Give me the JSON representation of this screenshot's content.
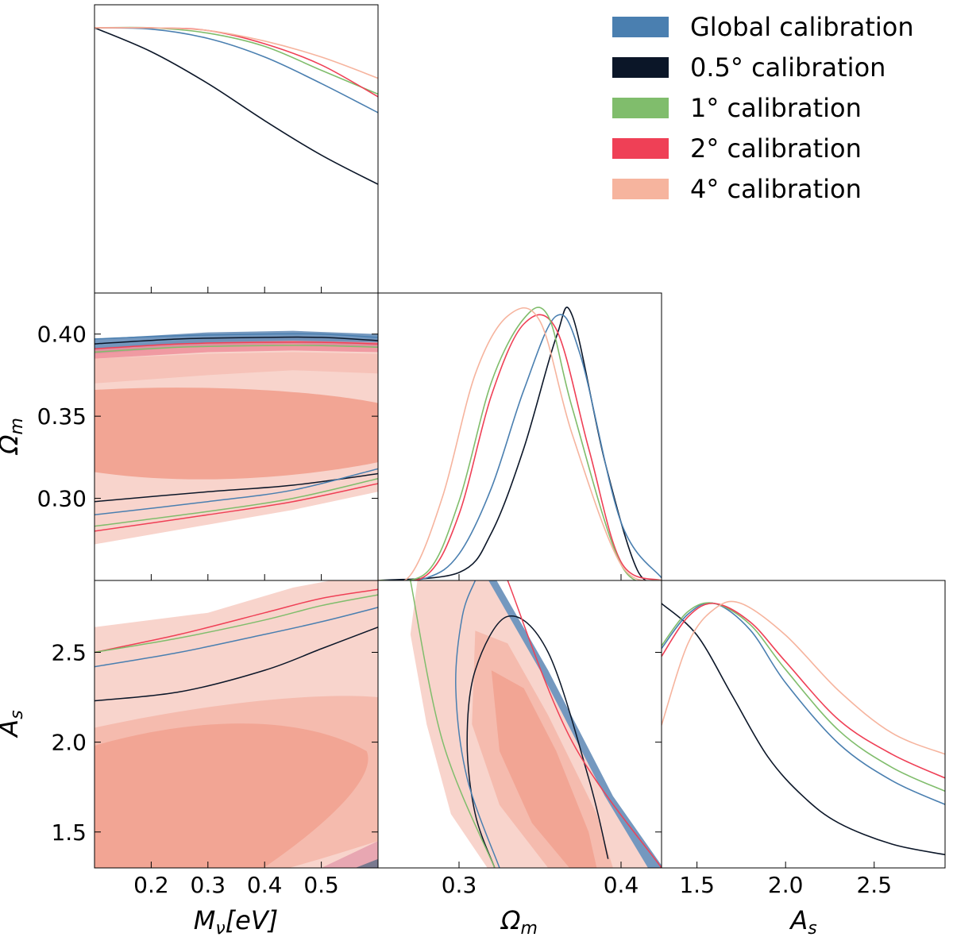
{
  "chart_data": {
    "type": "corner",
    "parameters": [
      {
        "id": "mnu",
        "label": "Mν[eV]",
        "display_label": [
          "M",
          "ν",
          "[eV]"
        ],
        "range": [
          0.1,
          0.6
        ]
      },
      {
        "id": "om",
        "label": "Ωm",
        "display_label": [
          "Ω",
          "m"
        ],
        "range": [
          0.25,
          0.425
        ]
      },
      {
        "id": "as",
        "label": "As",
        "display_label": [
          "A",
          "s"
        ],
        "range": [
          1.3,
          2.9
        ]
      }
    ],
    "ticks": {
      "mnu": [
        "0.2",
        "0.3",
        "0.4",
        "0.5"
      ],
      "om_y": [
        "0.30",
        "0.35",
        "0.40"
      ],
      "om_x": [
        "0.3",
        "0.4"
      ],
      "as_y": [
        "1.5",
        "2.0",
        "2.5"
      ],
      "as_x": [
        "1.5",
        "2.0",
        "2.5"
      ]
    },
    "legend": [
      {
        "name": "Global calibration",
        "color": "#4a7fb0"
      },
      {
        "name": "0.5° calibration",
        "color": "#0b1628"
      },
      {
        "name": "1° calibration",
        "color": "#80bd6c"
      },
      {
        "name": "2° calibration",
        "color": "#ef4056"
      },
      {
        "name": "4° calibration",
        "color": "#f6b49e"
      }
    ],
    "fill_colors": {
      "inner": "#f2a594",
      "outer": "#f8d4cc"
    },
    "series_1d": {
      "mnu": [
        {
          "color": "#0b1628",
          "x": [
            0.1,
            0.2,
            0.3,
            0.4,
            0.5,
            0.6
          ],
          "y": [
            1.0,
            0.91,
            0.79,
            0.65,
            0.52,
            0.41
          ]
        },
        {
          "color": "#4a7fb0",
          "x": [
            0.1,
            0.2,
            0.3,
            0.4,
            0.5,
            0.6
          ],
          "y": [
            1.0,
            0.995,
            0.96,
            0.89,
            0.79,
            0.68
          ]
        },
        {
          "color": "#80bd6c",
          "x": [
            0.1,
            0.2,
            0.3,
            0.4,
            0.5,
            0.6
          ],
          "y": [
            1.0,
            1.0,
            0.98,
            0.93,
            0.84,
            0.75
          ]
        },
        {
          "color": "#ef4056",
          "x": [
            0.1,
            0.2,
            0.3,
            0.4,
            0.5,
            0.6
          ],
          "y": [
            1.0,
            1.0,
            0.99,
            0.94,
            0.86,
            0.74
          ]
        },
        {
          "color": "#f6b49e",
          "x": [
            0.1,
            0.2,
            0.3,
            0.4,
            0.5,
            0.6
          ],
          "y": [
            1.0,
            1.0,
            0.99,
            0.95,
            0.89,
            0.81
          ]
        }
      ],
      "om": [
        {
          "color": "#0b1628",
          "x": [
            0.25,
            0.3,
            0.32,
            0.34,
            0.36,
            0.37,
            0.39,
            0.41,
            0.425
          ],
          "y": [
            0.0,
            0.03,
            0.18,
            0.5,
            0.92,
            1.0,
            0.45,
            0.04,
            0.0
          ]
        },
        {
          "color": "#4a7fb0",
          "x": [
            0.25,
            0.28,
            0.3,
            0.32,
            0.34,
            0.36,
            0.375,
            0.4,
            0.425
          ],
          "y": [
            0.0,
            0.01,
            0.1,
            0.35,
            0.72,
            1.0,
            0.85,
            0.22,
            0.01
          ]
        },
        {
          "color": "#ef4056",
          "x": [
            0.25,
            0.28,
            0.3,
            0.32,
            0.34,
            0.36,
            0.38,
            0.4,
            0.425
          ],
          "y": [
            0.0,
            0.02,
            0.25,
            0.7,
            0.97,
            0.95,
            0.5,
            0.07,
            0.0
          ]
        },
        {
          "color": "#80bd6c",
          "x": [
            0.25,
            0.28,
            0.3,
            0.32,
            0.34,
            0.355,
            0.37,
            0.4,
            0.425
          ],
          "y": [
            0.0,
            0.03,
            0.3,
            0.75,
            0.99,
            1.0,
            0.65,
            0.06,
            0.0
          ]
        },
        {
          "color": "#f6b49e",
          "x": [
            0.25,
            0.27,
            0.29,
            0.31,
            0.33,
            0.35,
            0.37,
            0.4,
            0.425
          ],
          "y": [
            0.0,
            0.02,
            0.32,
            0.78,
            1.0,
            0.98,
            0.55,
            0.06,
            0.0
          ]
        }
      ],
      "as": [
        {
          "color": "#0b1628",
          "x": [
            1.3,
            1.5,
            1.7,
            1.9,
            2.1,
            2.3,
            2.6,
            2.9
          ],
          "y": [
            1.0,
            0.88,
            0.65,
            0.42,
            0.27,
            0.17,
            0.09,
            0.05
          ]
        },
        {
          "color": "#4a7fb0",
          "x": [
            1.3,
            1.45,
            1.6,
            1.8,
            2.0,
            2.3,
            2.6,
            2.9
          ],
          "y": [
            0.83,
            0.96,
            1.0,
            0.9,
            0.7,
            0.47,
            0.33,
            0.24
          ]
        },
        {
          "color": "#80bd6c",
          "x": [
            1.3,
            1.45,
            1.6,
            1.8,
            2.0,
            2.3,
            2.6,
            2.9
          ],
          "y": [
            0.84,
            0.97,
            1.0,
            0.92,
            0.75,
            0.52,
            0.38,
            0.29
          ]
        },
        {
          "color": "#ef4056",
          "x": [
            1.3,
            1.45,
            1.6,
            1.8,
            2.0,
            2.3,
            2.6,
            2.9
          ],
          "y": [
            0.8,
            0.95,
            1.0,
            0.93,
            0.78,
            0.56,
            0.43,
            0.34
          ]
        },
        {
          "color": "#f6b49e",
          "x": [
            1.3,
            1.45,
            1.6,
            1.75,
            2.0,
            2.3,
            2.6,
            2.9
          ],
          "y": [
            0.54,
            0.85,
            0.98,
            1.0,
            0.88,
            0.67,
            0.51,
            0.43
          ]
        }
      ]
    },
    "lines_2d": {
      "om_vs_mnu": [
        {
          "color": "#4a7fb0",
          "x": [
            0.1,
            0.25,
            0.4,
            0.5,
            0.6
          ],
          "y": [
            0.397,
            0.399,
            0.4,
            0.4,
            0.398
          ]
        },
        {
          "color": "#0b1628",
          "x": [
            0.1,
            0.25,
            0.4,
            0.5,
            0.6
          ],
          "y": [
            0.394,
            0.397,
            0.398,
            0.398,
            0.396
          ]
        },
        {
          "color": "#ef4056",
          "x": [
            0.1,
            0.25,
            0.4,
            0.5,
            0.6
          ],
          "y": [
            0.391,
            0.394,
            0.395,
            0.395,
            0.394
          ]
        },
        {
          "color": "#80bd6c",
          "x": [
            0.1,
            0.25,
            0.4,
            0.5,
            0.6
          ],
          "y": [
            0.389,
            0.392,
            0.393,
            0.393,
            0.392
          ]
        },
        {
          "color": "#0b1628",
          "x": [
            0.1,
            0.3,
            0.45,
            0.6
          ],
          "y": [
            0.298,
            0.304,
            0.308,
            0.315
          ]
        },
        {
          "color": "#4a7fb0",
          "x": [
            0.1,
            0.3,
            0.45,
            0.6
          ],
          "y": [
            0.29,
            0.298,
            0.305,
            0.318
          ]
        },
        {
          "color": "#ef4056",
          "x": [
            0.1,
            0.3,
            0.45,
            0.6
          ],
          "y": [
            0.28,
            0.29,
            0.298,
            0.309
          ]
        },
        {
          "color": "#80bd6c",
          "x": [
            0.1,
            0.3,
            0.45,
            0.6
          ],
          "y": [
            0.283,
            0.292,
            0.3,
            0.312
          ]
        }
      ],
      "as_vs_mnu": [
        {
          "color": "#ef4056",
          "x": [
            0.1,
            0.25,
            0.4,
            0.5,
            0.6
          ],
          "y": [
            2.5,
            2.6,
            2.72,
            2.8,
            2.85
          ]
        },
        {
          "color": "#80bd6c",
          "x": [
            0.1,
            0.25,
            0.4,
            0.5,
            0.6
          ],
          "y": [
            2.5,
            2.58,
            2.68,
            2.76,
            2.82
          ]
        },
        {
          "color": "#4a7fb0",
          "x": [
            0.1,
            0.25,
            0.4,
            0.5,
            0.6
          ],
          "y": [
            2.42,
            2.5,
            2.6,
            2.67,
            2.75
          ]
        },
        {
          "color": "#0b1628",
          "x": [
            0.1,
            0.25,
            0.4,
            0.5,
            0.6
          ],
          "y": [
            2.23,
            2.28,
            2.4,
            2.52,
            2.64
          ]
        }
      ],
      "as_vs_om": [
        {
          "color": "#0b1628",
          "x": [
            0.322,
            0.31,
            0.305,
            0.31,
            0.33,
            0.355,
            0.38,
            0.392
          ],
          "y": [
            1.3,
            1.6,
            2.0,
            2.4,
            2.7,
            2.5,
            1.8,
            1.35
          ]
        },
        {
          "color": "#4a7fb0",
          "x": [
            0.325,
            0.305,
            0.298,
            0.302,
            0.31
          ],
          "y": [
            1.3,
            1.8,
            2.3,
            2.7,
            2.9
          ]
        },
        {
          "color": "#80bd6c",
          "x": [
            0.322,
            0.29,
            0.27
          ],
          "y": [
            1.3,
            2.0,
            2.9
          ]
        },
        {
          "color": "#ef4056",
          "x": [
            0.425,
            0.37,
            0.33
          ],
          "y": [
            1.3,
            2.0,
            2.9
          ]
        }
      ]
    }
  }
}
